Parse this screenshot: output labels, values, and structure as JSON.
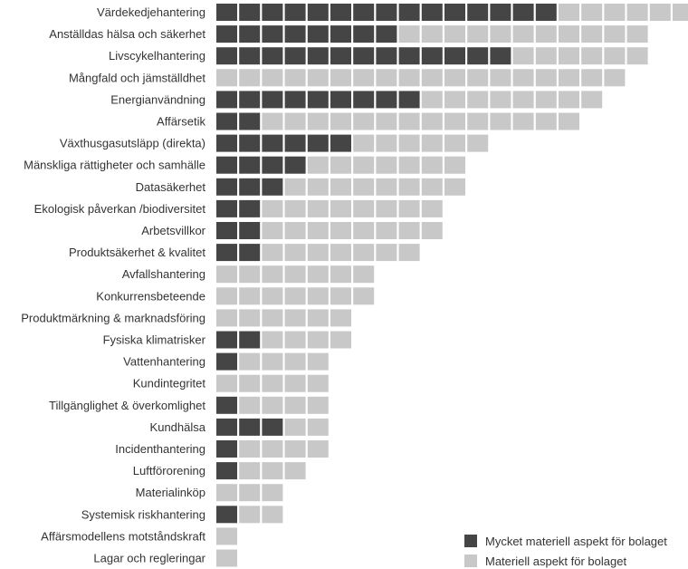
{
  "chart_data": {
    "type": "bar",
    "orientation": "horizontal",
    "stacked": true,
    "unit_blocks": true,
    "categories": [
      "Värdekedjehantering",
      "Anställdas hälsa och säkerhet",
      "Livscykelhantering",
      "Mångfald och jämställdhet",
      "Energianvändning",
      "Affärsetik",
      "Växthusgasutsläpp (direkta)",
      "Mänskliga rättigheter och samhälle",
      "Datasäkerhet",
      "Ekologisk påverkan /biodiversitet",
      "Arbetsvillkor",
      "Produktsäkerhet & kvalitet",
      "Avfallshantering",
      "Konkurrensbeteende",
      "Produktmärkning & marknadsföring",
      "Fysiska klimatrisker",
      "Vattenhantering",
      "Kundintegritet",
      "Tillgänglighet & överkomlighet",
      "Kundhälsa",
      "Incidenthantering",
      "Luftförorening",
      "Materialinköp",
      "Systemisk riskhantering",
      "Affärsmodellens motståndskraft",
      "Lagar och regleringar"
    ],
    "series": [
      {
        "name": "Mycket materiell aspekt för bolaget",
        "color": "#454545",
        "values": [
          15,
          8,
          13,
          0,
          9,
          2,
          6,
          4,
          3,
          2,
          2,
          2,
          0,
          0,
          0,
          2,
          1,
          0,
          1,
          3,
          1,
          1,
          0,
          1,
          0,
          0
        ]
      },
      {
        "name": "Materiell aspekt för bolaget",
        "color": "#c8c8c8",
        "values": [
          6,
          11,
          6,
          18,
          8,
          14,
          6,
          7,
          8,
          8,
          8,
          7,
          7,
          7,
          6,
          4,
          4,
          5,
          4,
          2,
          4,
          3,
          3,
          2,
          1,
          1
        ]
      }
    ],
    "legend_position": "bottom-right",
    "grid": false
  }
}
